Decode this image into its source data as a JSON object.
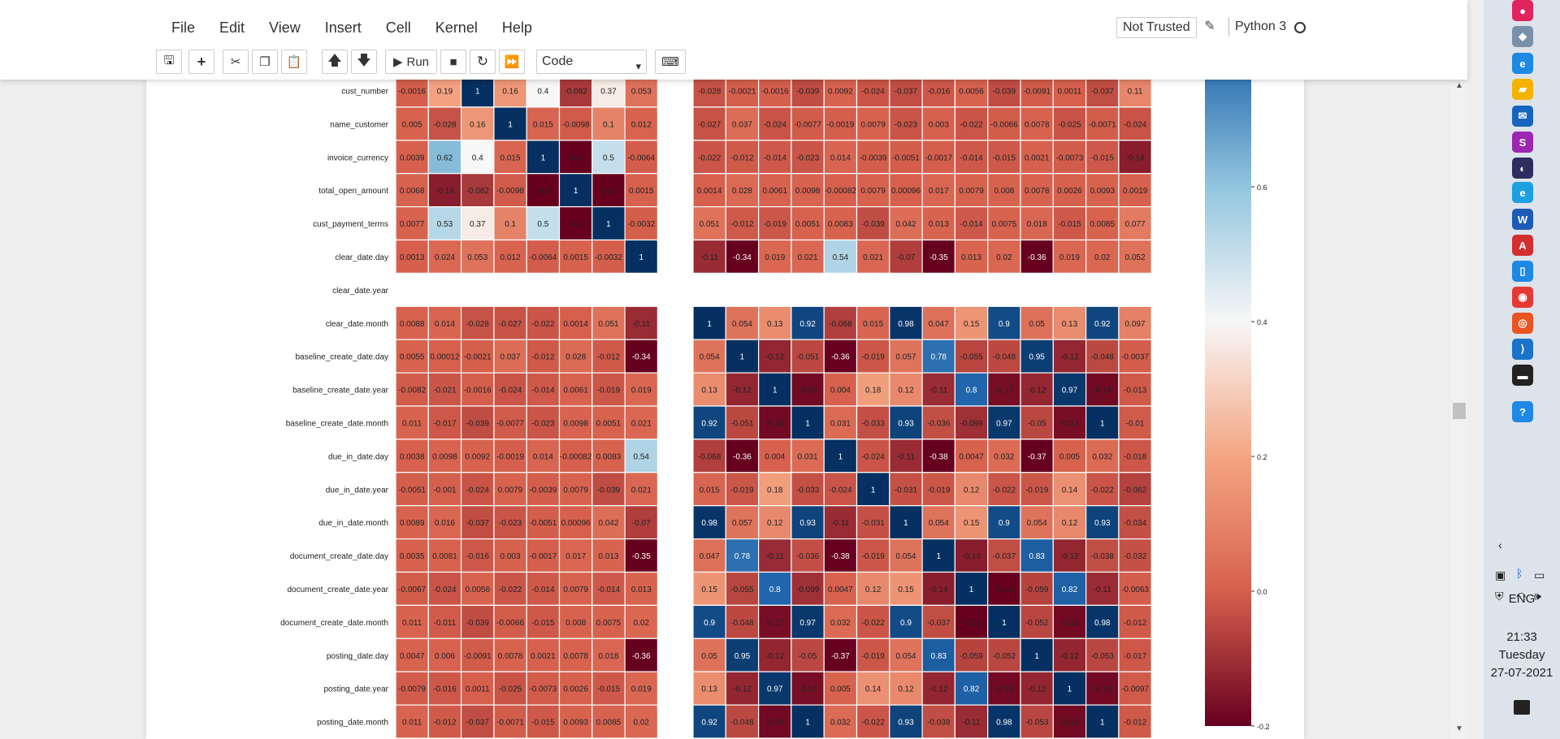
{
  "menu": [
    "File",
    "Edit",
    "View",
    "Insert",
    "Cell",
    "Kernel",
    "Help"
  ],
  "trust_label": "Not Trusted",
  "kernel_label": "Python 3",
  "toolbar": {
    "run_label": "Run",
    "cell_type": "Code",
    "buttons": [
      "save-icon",
      "plus-icon",
      "cut-icon",
      "copy-icon",
      "paste-icon",
      "move-up-icon",
      "move-down-icon",
      "run-icon",
      "stop-icon",
      "restart-icon",
      "fast-forward-icon",
      "keyboard-icon"
    ]
  },
  "colors": {
    "strong_blue": "#053061",
    "strong_red": "#67001f",
    "mid": "#f7f7f7"
  },
  "chart_data": {
    "type": "heatmap",
    "colormap": "RdBu",
    "vmin": -0.2,
    "vmax": 1,
    "rows": [
      "cust_number",
      "name_customer",
      "invoice_currency",
      "total_open_amount",
      "cust_payment_terms",
      "clear_date.day",
      "clear_date.year",
      "clear_date.month",
      "baseline_create_date.day",
      "baseline_create_date.year",
      "baseline_create_date.month",
      "due_in_date.day",
      "due_in_date.year",
      "due_in_date.month",
      "document_create_date.day",
      "document_create_date.year",
      "document_create_date.month",
      "posting_date.day",
      "posting_date.year",
      "posting_date.month"
    ],
    "left_block": [
      [
        "-0.0016",
        "0.19",
        "1",
        "0.16",
        "0.4",
        "-0.082",
        "0.37",
        "0.053"
      ],
      [
        "0.005",
        "-0.028",
        "0.16",
        "1",
        "0.015",
        "-0.0098",
        "0.1",
        "0.012"
      ],
      [
        "0.0039",
        "0.62",
        "0.4",
        "0.015",
        "1",
        "-0.2",
        "0.5",
        "-0.0064"
      ],
      [
        "0.0068",
        "-0.14",
        "-0.082",
        "-0.0098",
        "-0.2",
        "1",
        "-0.2",
        "0.0015"
      ],
      [
        "0.0077",
        "0.53",
        "0.37",
        "0.1",
        "0.5",
        "-0.2",
        "1",
        "-0.0032"
      ],
      [
        "0.0013",
        "0.024",
        "0.053",
        "0.012",
        "-0.0064",
        "0.0015",
        "-0.0032",
        "1"
      ],
      [
        "",
        "",
        "",
        "",
        "",
        "",
        "",
        ""
      ],
      [
        "0.0088",
        "0.014",
        "-0.028",
        "-0.027",
        "-0.022",
        "0.0014",
        "0.051",
        "-0.11"
      ],
      [
        "0.0055",
        "0.00012",
        "-0.0021",
        "0.037",
        "-0.012",
        "0.028",
        "-0.012",
        "-0.34"
      ],
      [
        "-0.0082",
        "-0.021",
        "-0.0016",
        "-0.024",
        "-0.014",
        "0.0061",
        "-0.019",
        "0.019"
      ],
      [
        "0.011",
        "-0.017",
        "-0.039",
        "-0.0077",
        "-0.023",
        "0.0098",
        "0.0051",
        "0.021"
      ],
      [
        "0.0038",
        "0.0098",
        "0.0092",
        "-0.0019",
        "0.014",
        "-0.00082",
        "0.0083",
        "0.54"
      ],
      [
        "-0.0051",
        "-0.001",
        "-0.024",
        "0.0079",
        "-0.0039",
        "0.0079",
        "-0.039",
        "0.021"
      ],
      [
        "0.0089",
        "0.016",
        "-0.037",
        "-0.023",
        "-0.0051",
        "0.00096",
        "0.042",
        "-0.07"
      ],
      [
        "0.0035",
        "0.0081",
        "-0.016",
        "0.003",
        "-0.0017",
        "0.017",
        "0.013",
        "-0.35"
      ],
      [
        "-0.0067",
        "-0.024",
        "0.0056",
        "-0.022",
        "-0.014",
        "0.0079",
        "-0.014",
        "0.013"
      ],
      [
        "0.011",
        "-0.011",
        "-0.039",
        "-0.0066",
        "-0.015",
        "0.008",
        "0.0075",
        "0.02"
      ],
      [
        "0.0047",
        "0.006",
        "-0.0091",
        "0.0078",
        "0.0021",
        "0.0078",
        "0.018",
        "-0.36"
      ],
      [
        "-0.0079",
        "-0.016",
        "0.0011",
        "-0.025",
        "-0.0073",
        "0.0026",
        "-0.015",
        "0.019"
      ],
      [
        "0.011",
        "-0.012",
        "-0.037",
        "-0.0071",
        "-0.015",
        "0.0093",
        "0.0085",
        "0.02"
      ]
    ],
    "right_block": [
      [
        "-0.028",
        "-0.0021",
        "-0.0016",
        "-0.039",
        "0.0092",
        "-0.024",
        "-0.037",
        "-0.016",
        "0.0056",
        "-0.039",
        "-0.0091",
        "0.0011",
        "-0.037",
        "0.11"
      ],
      [
        "-0.027",
        "0.037",
        "-0.024",
        "-0.0077",
        "-0.0019",
        "0.0079",
        "-0.023",
        "0.003",
        "-0.022",
        "-0.0066",
        "0.0078",
        "-0.025",
        "-0.0071",
        "-0.024"
      ],
      [
        "-0.022",
        "-0.012",
        "-0.014",
        "-0.023",
        "0.014",
        "-0.0039",
        "-0.0051",
        "-0.0017",
        "-0.014",
        "-0.015",
        "0.0021",
        "-0.0073",
        "-0.015",
        "-0.14"
      ],
      [
        "0.0014",
        "0.028",
        "0.0061",
        "0.0098",
        "-0.00082",
        "0.0079",
        "0.00096",
        "0.017",
        "0.0079",
        "0.008",
        "0.0078",
        "0.0026",
        "0.0093",
        "0.0019"
      ],
      [
        "0.051",
        "-0.012",
        "-0.019",
        "0.0051",
        "0.0083",
        "-0.039",
        "0.042",
        "0.013",
        "-0.014",
        "0.0075",
        "0.018",
        "-0.015",
        "0.0085",
        "0.077"
      ],
      [
        "-0.11",
        "-0.34",
        "0.019",
        "0.021",
        "0.54",
        "0.021",
        "-0.07",
        "-0.35",
        "0.013",
        "0.02",
        "-0.36",
        "0.019",
        "0.02",
        "0.052"
      ],
      [
        "",
        "",
        "",
        "",
        "",
        "",
        "",
        "",
        "",
        "",
        "",
        "",
        "",
        ""
      ],
      [
        "1",
        "0.054",
        "0.13",
        "0.92",
        "-0.068",
        "0.015",
        "0.98",
        "0.047",
        "0.15",
        "0.9",
        "0.05",
        "0.13",
        "0.92",
        "0.097"
      ],
      [
        "0.054",
        "1",
        "-0.12",
        "-0.051",
        "-0.36",
        "-0.019",
        "0.057",
        "0.78",
        "-0.055",
        "-0.048",
        "0.95",
        "-0.12",
        "-0.048",
        "-0.0037"
      ],
      [
        "0.13",
        "-0.12",
        "1",
        "-0.18",
        "0.004",
        "0.18",
        "0.12",
        "-0.11",
        "0.8",
        "-0.17",
        "-0.12",
        "0.97",
        "-0.18",
        "-0.013"
      ],
      [
        "0.92",
        "-0.051",
        "-0.18",
        "1",
        "0.031",
        "-0.033",
        "0.93",
        "-0.036",
        "-0.099",
        "0.97",
        "-0.05",
        "-0.17",
        "1",
        "-0.01"
      ],
      [
        "-0.068",
        "-0.36",
        "0.004",
        "0.031",
        "1",
        "-0.024",
        "-0.11",
        "-0.38",
        "0.0047",
        "0.032",
        "-0.37",
        "0.005",
        "0.032",
        "-0.018"
      ],
      [
        "0.015",
        "-0.019",
        "0.18",
        "-0.033",
        "-0.024",
        "1",
        "-0.031",
        "-0.019",
        "0.12",
        "-0.022",
        "-0.019",
        "0.14",
        "-0.022",
        "-0.062"
      ],
      [
        "0.98",
        "0.057",
        "0.12",
        "0.93",
        "-0.11",
        "-0.031",
        "1",
        "0.054",
        "0.15",
        "0.9",
        "0.054",
        "0.12",
        "0.93",
        "-0.034"
      ],
      [
        "0.047",
        "0.78",
        "-0.11",
        "-0.036",
        "-0.38",
        "-0.019",
        "0.054",
        "1",
        "-0.14",
        "-0.037",
        "0.83",
        "-0.12",
        "-0.038",
        "-0.032"
      ],
      [
        "0.15",
        "-0.055",
        "0.8",
        "-0.099",
        "0.0047",
        "0.12",
        "0.15",
        "-0.14",
        "1",
        "-0.22",
        "-0.059",
        "0.82",
        "-0.11",
        "-0.0063"
      ],
      [
        "0.9",
        "-0.048",
        "-0.17",
        "0.97",
        "0.032",
        "-0.022",
        "0.9",
        "-0.037",
        "-0.22",
        "1",
        "-0.052",
        "-0.18",
        "0.98",
        "-0.012"
      ],
      [
        "0.05",
        "0.95",
        "-0.12",
        "-0.05",
        "-0.37",
        "-0.019",
        "0.054",
        "0.83",
        "-0.059",
        "-0.052",
        "1",
        "-0.12",
        "-0.053",
        "-0.017"
      ],
      [
        "0.13",
        "-0.12",
        "0.97",
        "-0.17",
        "0.005",
        "0.14",
        "0.12",
        "-0.12",
        "0.82",
        "-0.18",
        "-0.12",
        "1",
        "-0.18",
        "-0.0097"
      ],
      [
        "0.92",
        "-0.048",
        "-0.18",
        "1",
        "0.032",
        "-0.022",
        "0.93",
        "-0.038",
        "-0.11",
        "0.98",
        "-0.053",
        "-0.18",
        "1",
        "-0.012"
      ]
    ],
    "colorbar_ticks": [
      "0.6",
      "0.4",
      "0.2",
      "0.0",
      "-0.2"
    ]
  },
  "taskbar": {
    "icons": [
      "record-icon",
      "3d-viewer-icon",
      "edge-icon",
      "file-explorer-icon",
      "mail-icon",
      "onenote-icon",
      "eclipse-icon",
      "ie-icon",
      "word-icon",
      "acrobat-icon",
      "phone-icon",
      "chrome-icon",
      "ubuntu-icon",
      "vscode-icon",
      "terminal-icon",
      "help-icon"
    ],
    "language": "ENG",
    "time": "21:33",
    "day": "Tuesday",
    "date": "27-07-2021"
  }
}
